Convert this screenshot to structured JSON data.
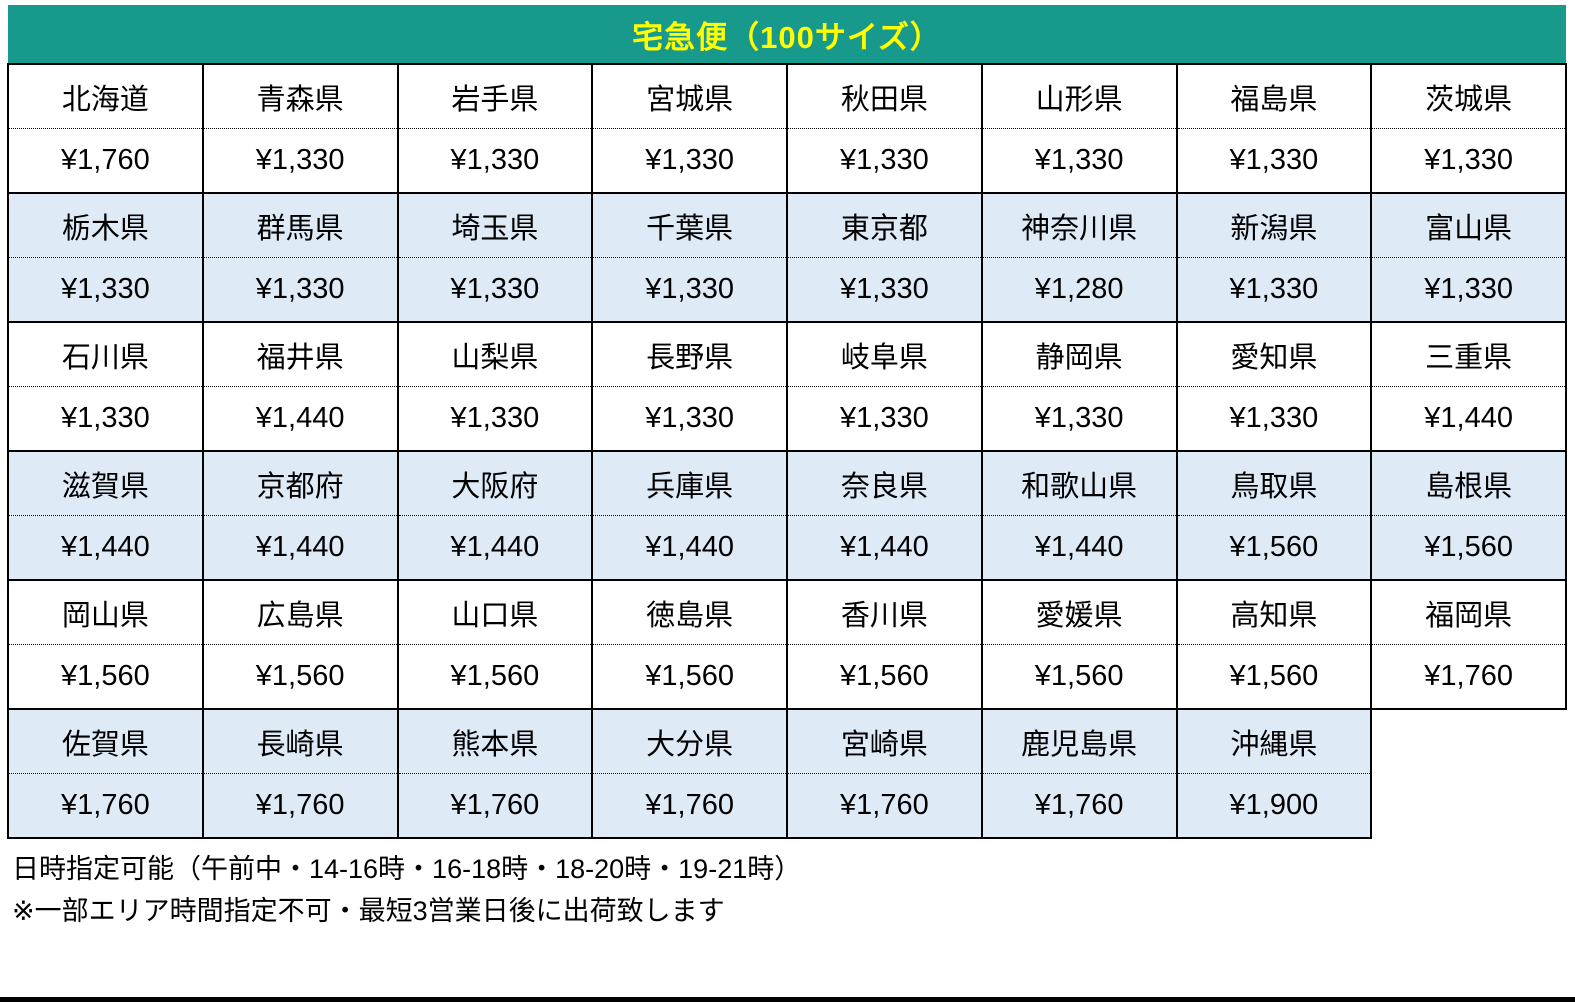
{
  "title": "宅急便（100サイズ）",
  "colors": {
    "header_bg": "#17998B",
    "header_text": "#FFFF00",
    "row_alt_bg": "#DEEAF6",
    "border": "#000000"
  },
  "table": {
    "columns": 8,
    "groups": [
      {
        "cells": [
          {
            "prefecture": "北海道",
            "price": "¥1,760"
          },
          {
            "prefecture": "青森県",
            "price": "¥1,330"
          },
          {
            "prefecture": "岩手県",
            "price": "¥1,330"
          },
          {
            "prefecture": "宮城県",
            "price": "¥1,330"
          },
          {
            "prefecture": "秋田県",
            "price": "¥1,330"
          },
          {
            "prefecture": "山形県",
            "price": "¥1,330"
          },
          {
            "prefecture": "福島県",
            "price": "¥1,330"
          },
          {
            "prefecture": "茨城県",
            "price": "¥1,330"
          }
        ]
      },
      {
        "cells": [
          {
            "prefecture": "栃木県",
            "price": "¥1,330"
          },
          {
            "prefecture": "群馬県",
            "price": "¥1,330"
          },
          {
            "prefecture": "埼玉県",
            "price": "¥1,330"
          },
          {
            "prefecture": "千葉県",
            "price": "¥1,330"
          },
          {
            "prefecture": "東京都",
            "price": "¥1,330"
          },
          {
            "prefecture": "神奈川県",
            "price": "¥1,280"
          },
          {
            "prefecture": "新潟県",
            "price": "¥1,330"
          },
          {
            "prefecture": "富山県",
            "price": "¥1,330"
          }
        ]
      },
      {
        "cells": [
          {
            "prefecture": "石川県",
            "price": "¥1,330"
          },
          {
            "prefecture": "福井県",
            "price": "¥1,440"
          },
          {
            "prefecture": "山梨県",
            "price": "¥1,330"
          },
          {
            "prefecture": "長野県",
            "price": "¥1,330"
          },
          {
            "prefecture": "岐阜県",
            "price": "¥1,330"
          },
          {
            "prefecture": "静岡県",
            "price": "¥1,330"
          },
          {
            "prefecture": "愛知県",
            "price": "¥1,330"
          },
          {
            "prefecture": "三重県",
            "price": "¥1,440"
          }
        ]
      },
      {
        "cells": [
          {
            "prefecture": "滋賀県",
            "price": "¥1,440"
          },
          {
            "prefecture": "京都府",
            "price": "¥1,440"
          },
          {
            "prefecture": "大阪府",
            "price": "¥1,440"
          },
          {
            "prefecture": "兵庫県",
            "price": "¥1,440"
          },
          {
            "prefecture": "奈良県",
            "price": "¥1,440"
          },
          {
            "prefecture": "和歌山県",
            "price": "¥1,440"
          },
          {
            "prefecture": "鳥取県",
            "price": "¥1,560"
          },
          {
            "prefecture": "島根県",
            "price": "¥1,560"
          }
        ]
      },
      {
        "cells": [
          {
            "prefecture": "岡山県",
            "price": "¥1,560"
          },
          {
            "prefecture": "広島県",
            "price": "¥1,560"
          },
          {
            "prefecture": "山口県",
            "price": "¥1,560"
          },
          {
            "prefecture": "徳島県",
            "price": "¥1,560"
          },
          {
            "prefecture": "香川県",
            "price": "¥1,560"
          },
          {
            "prefecture": "愛媛県",
            "price": "¥1,560"
          },
          {
            "prefecture": "高知県",
            "price": "¥1,560"
          },
          {
            "prefecture": "福岡県",
            "price": "¥1,760"
          }
        ]
      },
      {
        "cells": [
          {
            "prefecture": "佐賀県",
            "price": "¥1,760"
          },
          {
            "prefecture": "長崎県",
            "price": "¥1,760"
          },
          {
            "prefecture": "熊本県",
            "price": "¥1,760"
          },
          {
            "prefecture": "大分県",
            "price": "¥1,760"
          },
          {
            "prefecture": "宮崎県",
            "price": "¥1,760"
          },
          {
            "prefecture": "鹿児島県",
            "price": "¥1,760"
          },
          {
            "prefecture": "沖縄県",
            "price": "¥1,900"
          }
        ]
      }
    ]
  },
  "footer": {
    "line1": "日時指定可能（午前中・14-16時・16-18時・18-20時・19-21時）",
    "line2": "※一部エリア時間指定不可・最短3営業日後に出荷致します"
  }
}
